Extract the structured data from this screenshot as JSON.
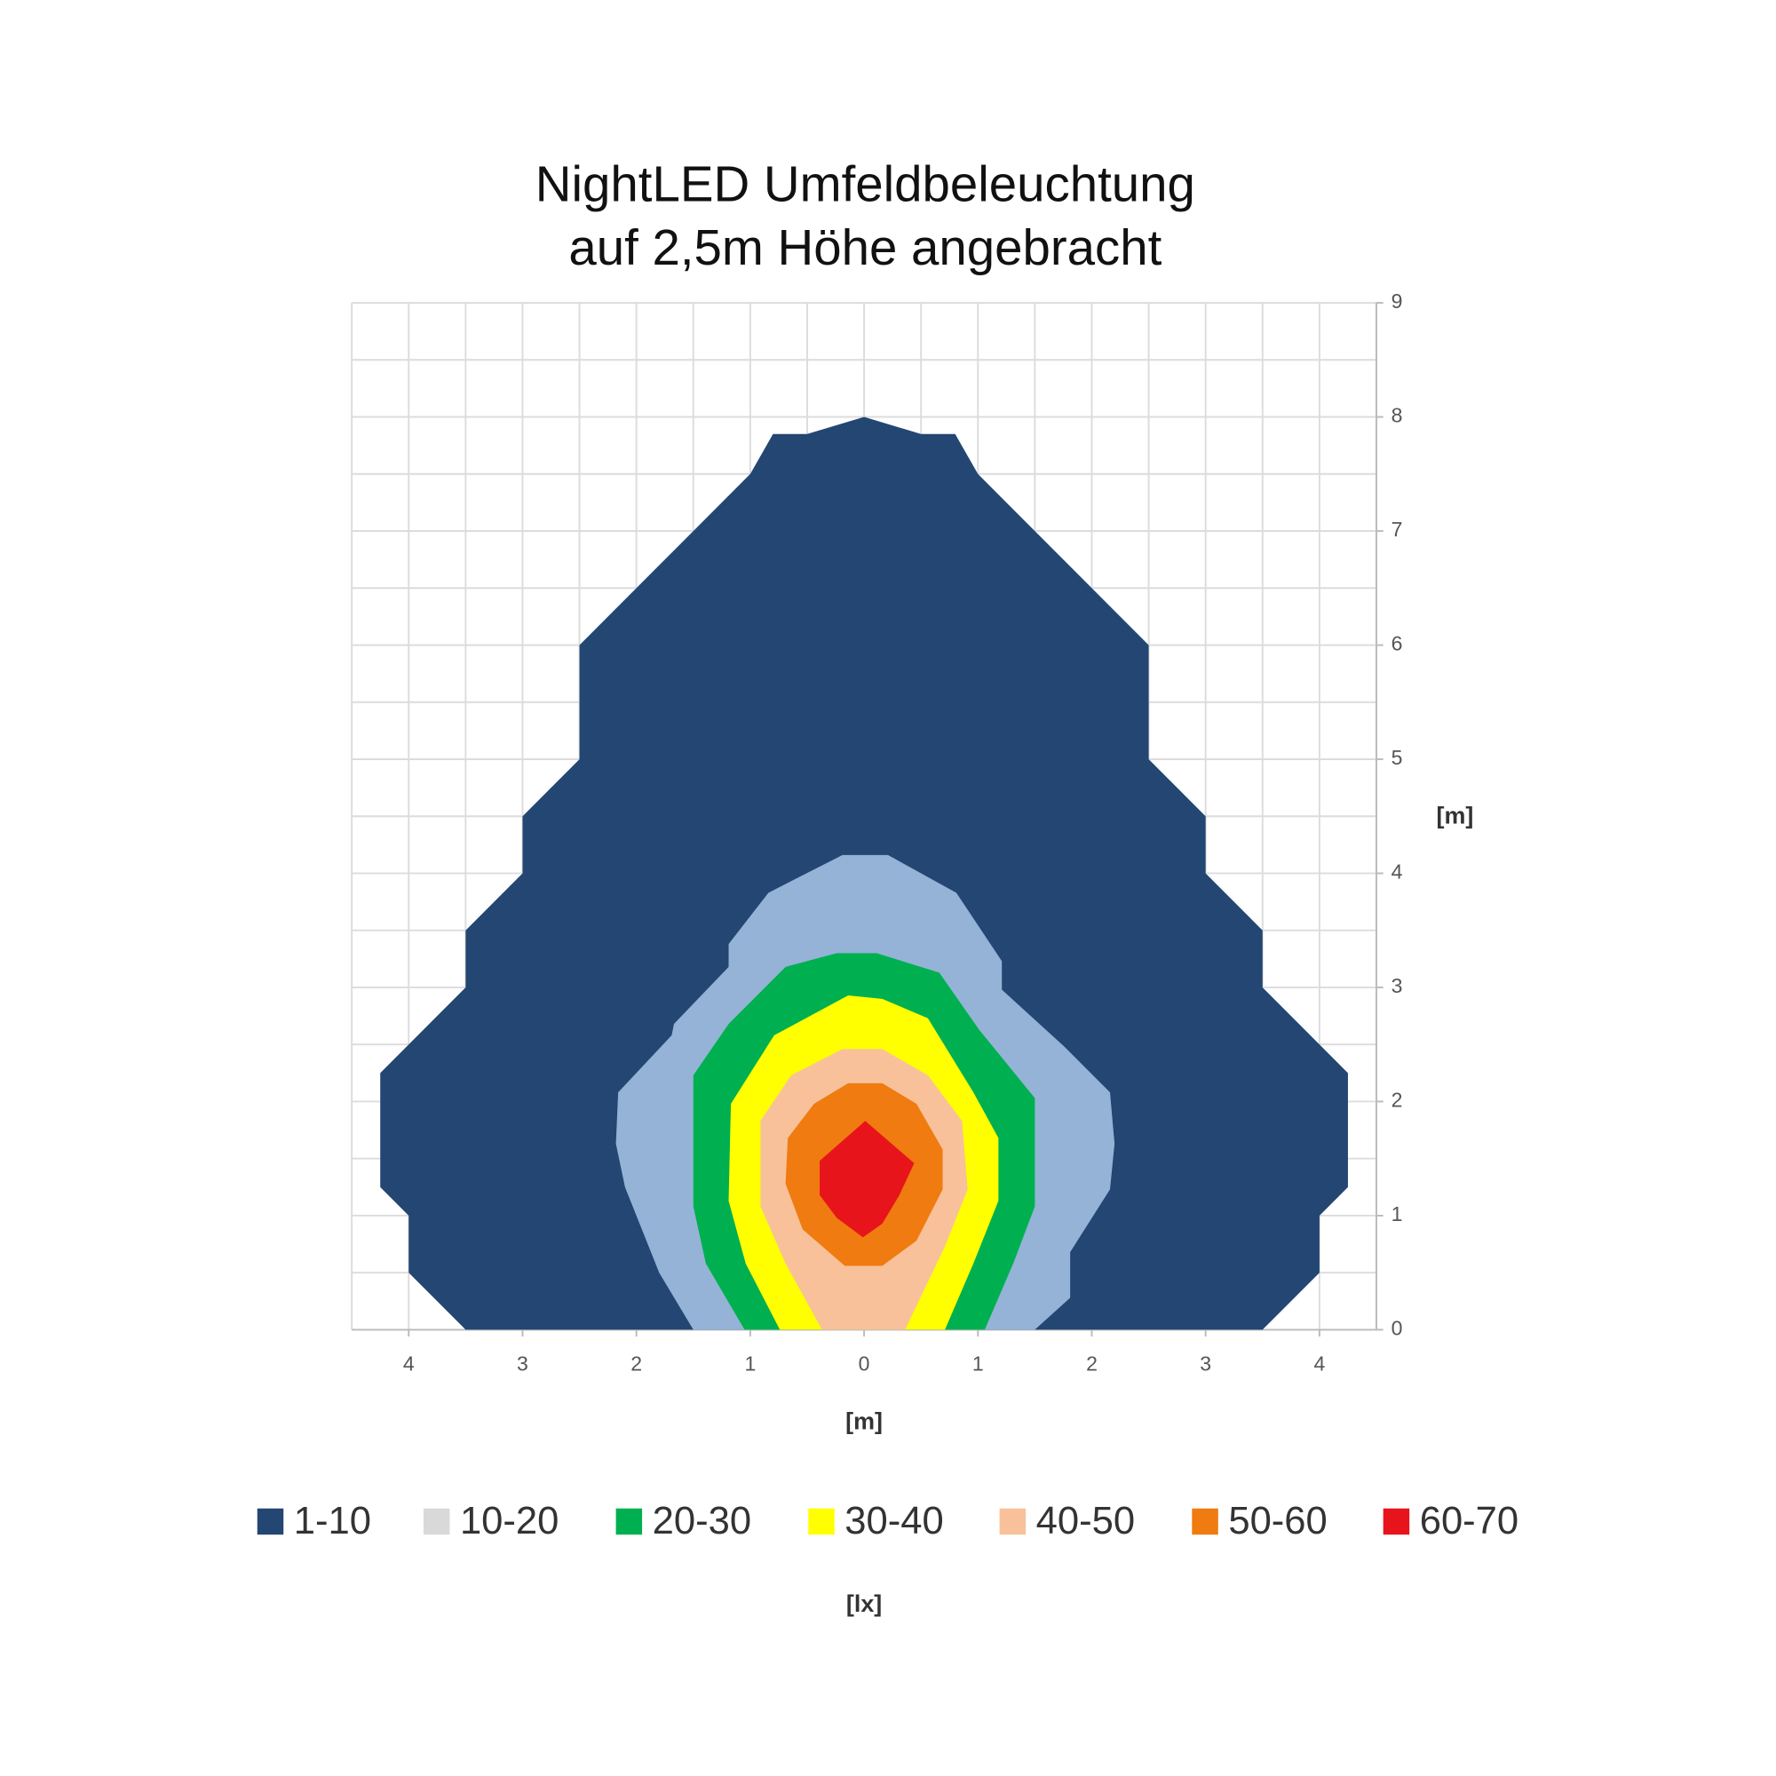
{
  "chart_data": {
    "type": "contour",
    "title": "NightLED Umfeldbeleuchtung",
    "subtitle": "auf 2,5m Höhe angebracht",
    "x_label": "[m]",
    "y_label": "[m]",
    "legend_title": "[lx]",
    "xlim": [
      -4.5,
      4.5
    ],
    "ylim": [
      0,
      9
    ],
    "xticks": [
      {
        "value": -4,
        "label": "4"
      },
      {
        "value": -3,
        "label": "3"
      },
      {
        "value": -2,
        "label": "2"
      },
      {
        "value": -1,
        "label": "1"
      },
      0,
      1,
      2,
      3,
      4
    ],
    "yticks": [
      0,
      1,
      2,
      3,
      4,
      5,
      6,
      7,
      8,
      9
    ],
    "grid": true,
    "grid_step": 0.5,
    "y_axis_side": "right",
    "series": [
      {
        "name": "1-10",
        "color": "#234673",
        "x": [
          -3.5,
          -4,
          -4,
          -4.25,
          -4.25,
          -3.5,
          -3.5,
          -3,
          -3,
          -2.5,
          -2.5,
          -1,
          -0.8,
          -0.5,
          0,
          0.5,
          0.8,
          1,
          2.5,
          2.5,
          3,
          3,
          3.5,
          3.5,
          4.25,
          4.25,
          4,
          4,
          3.5
        ],
        "y": [
          0,
          0.5,
          1,
          1.25,
          2.25,
          3,
          3.5,
          4,
          4.5,
          5,
          6,
          7.5,
          7.85,
          7.85,
          8,
          7.85,
          7.85,
          7.5,
          6,
          5,
          4.5,
          4,
          3.5,
          3,
          2.25,
          1.25,
          1,
          0.5,
          0
        ]
      },
      {
        "name": "10-20",
        "color": "#95b3d7",
        "legend_color": "#d9d9d9",
        "x": [
          -1.5,
          -1.8,
          -2.1,
          -2.18,
          -2.16,
          -1.69,
          -1.67,
          -1.19,
          -1.19,
          -0.84,
          -0.19,
          0.21,
          0.81,
          1.21,
          1.21,
          1.76,
          2.16,
          2.2,
          2.16,
          1.81,
          1.81,
          1.5
        ],
        "y": [
          0,
          0.5,
          1.25,
          1.63,
          2.08,
          2.58,
          2.68,
          3.18,
          3.38,
          3.83,
          4.16,
          4.16,
          3.83,
          3.23,
          2.98,
          2.48,
          2.08,
          1.63,
          1.23,
          0.68,
          0.28,
          0
        ]
      },
      {
        "name": "20-30",
        "color": "#00b050",
        "x": [
          -1.05,
          -1.39,
          -1.5,
          -1.5,
          -1.19,
          -0.69,
          -0.24,
          0.11,
          0.66,
          1.01,
          1.5,
          1.5,
          1.31,
          1.06
        ],
        "y": [
          0,
          0.58,
          1.08,
          2.23,
          2.68,
          3.18,
          3.3,
          3.3,
          3.13,
          2.63,
          2.03,
          1.08,
          0.58,
          0
        ]
      },
      {
        "name": "30-40",
        "color": "#ffff00",
        "x": [
          -0.74,
          -1.04,
          -1.19,
          -1.17,
          -0.79,
          -0.14,
          0.16,
          0.56,
          0.96,
          1.18,
          1.18,
          0.96,
          0.71
        ],
        "y": [
          0,
          0.58,
          1.13,
          1.98,
          2.58,
          2.93,
          2.9,
          2.73,
          2.08,
          1.68,
          1.13,
          0.58,
          0
        ]
      },
      {
        "name": "40-50",
        "color": "#f8c199",
        "x": [
          -0.37,
          -0.69,
          -0.91,
          -0.91,
          -0.64,
          -0.19,
          0.16,
          0.56,
          0.86,
          0.91,
          0.71,
          0.36
        ],
        "y": [
          0,
          0.58,
          1.08,
          1.83,
          2.23,
          2.46,
          2.46,
          2.23,
          1.83,
          1.23,
          0.73,
          0
        ]
      },
      {
        "name": "50-60",
        "color": "#f07b10",
        "x": [
          -0.17,
          -0.54,
          -0.69,
          -0.67,
          -0.44,
          -0.14,
          0.16,
          0.46,
          0.69,
          0.69,
          0.46,
          0.16
        ],
        "y": [
          0.56,
          0.88,
          1.28,
          1.68,
          1.98,
          2.16,
          2.16,
          1.98,
          1.58,
          1.23,
          0.78,
          0.56
        ]
      },
      {
        "name": "60-70",
        "color": "#e8141c",
        "x": [
          -0.01,
          -0.24,
          -0.39,
          -0.39,
          0.01,
          0.44,
          0.31,
          0.16
        ],
        "y": [
          0.81,
          0.98,
          1.18,
          1.48,
          1.83,
          1.46,
          1.18,
          0.93
        ]
      }
    ]
  }
}
